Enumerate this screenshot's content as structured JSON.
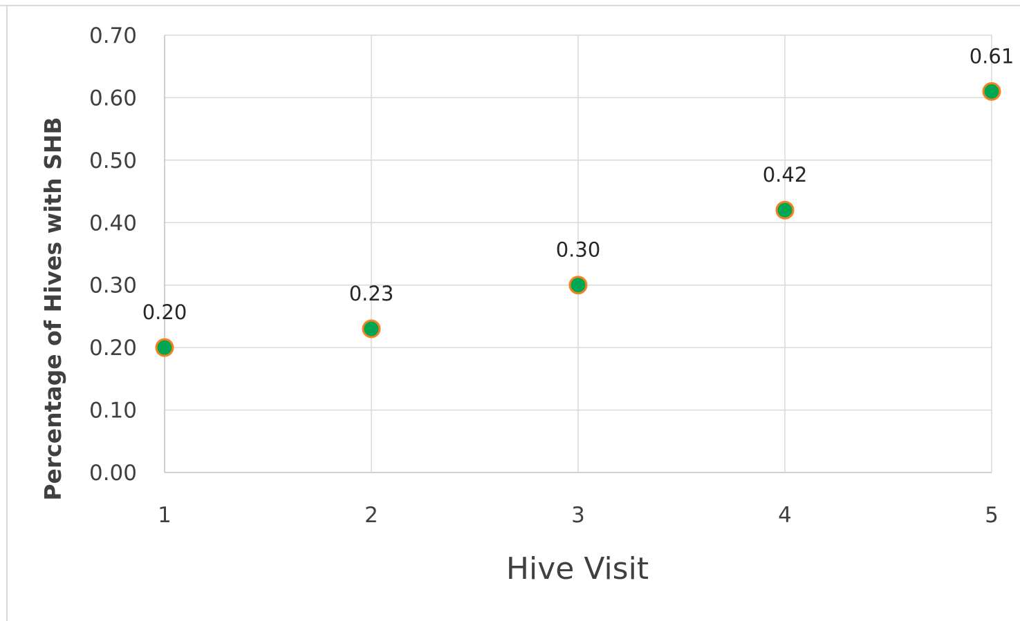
{
  "chart_data": {
    "type": "scatter",
    "title": "",
    "xlabel": "Hive Visit",
    "ylabel": "Percentage of Hives with SHB",
    "x": [
      1,
      2,
      3,
      4,
      5
    ],
    "y": [
      0.2,
      0.23,
      0.3,
      0.42,
      0.61
    ],
    "data_labels": [
      "0.20",
      "0.23",
      "0.30",
      "0.42",
      "0.61"
    ],
    "x_ticks": [
      "1",
      "2",
      "3",
      "4",
      "5"
    ],
    "y_ticks": [
      "0.00",
      "0.10",
      "0.20",
      "0.30",
      "0.40",
      "0.50",
      "0.60",
      "0.70"
    ],
    "xlim": [
      1,
      5
    ],
    "ylim": [
      0,
      0.7
    ],
    "grid": true,
    "legend": "none",
    "colors": {
      "marker_fill": "#00A651",
      "marker_stroke": "#F58220",
      "gridline": "#D9D9D9",
      "axis_text": "#404040"
    }
  }
}
